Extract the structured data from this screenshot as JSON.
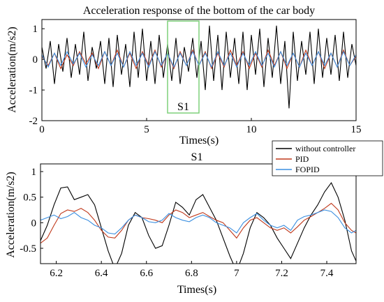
{
  "chart_data": [
    {
      "type": "line",
      "title": "Acceleration response of the bottom of the car body",
      "xlabel": "Times(s)",
      "ylabel": "Acceleration(m/s2)",
      "xlim": [
        0,
        15
      ],
      "ylim": [
        -2,
        1.3
      ],
      "xticks": [
        "0",
        "5",
        "10",
        "15"
      ],
      "yticks": [
        "1",
        "0",
        "-1",
        "-2"
      ],
      "grid": false,
      "series": [
        {
          "name": "without controller",
          "color": "#000000",
          "x": [
            0,
            0.2,
            0.4,
            0.6,
            0.8,
            1.0,
            1.2,
            1.4,
            1.6,
            1.8,
            2.0,
            2.2,
            2.4,
            2.6,
            2.8,
            3.0,
            3.2,
            3.4,
            3.6,
            3.8,
            4.0,
            4.2,
            4.4,
            4.6,
            4.8,
            5.0,
            5.2,
            5.4,
            5.6,
            5.8,
            6.0,
            6.2,
            6.4,
            6.6,
            6.8,
            7.0,
            7.2,
            7.4,
            7.6,
            7.8,
            8.0,
            8.2,
            8.4,
            8.6,
            8.8,
            9.0,
            9.2,
            9.4,
            9.6,
            9.8,
            10.0,
            10.2,
            10.4,
            10.6,
            10.8,
            11.0,
            11.2,
            11.4,
            11.6,
            11.8,
            12.0,
            12.2,
            12.4,
            12.6,
            12.8,
            13.0,
            13.2,
            13.4,
            13.6,
            13.8,
            14.0,
            14.2,
            14.4,
            14.6,
            14.8,
            15.0
          ],
          "values": [
            0.4,
            -0.3,
            0.6,
            -0.8,
            0.5,
            -0.4,
            0.7,
            -0.6,
            0.5,
            -0.5,
            0.9,
            -0.7,
            0.4,
            -0.3,
            0.6,
            -0.8,
            0.7,
            -0.9,
            0.8,
            -0.5,
            0.5,
            -0.9,
            0.9,
            -0.6,
            1.0,
            -0.7,
            0.6,
            -0.8,
            0.8,
            -0.6,
            0.5,
            -0.7,
            0.7,
            -0.8,
            0.4,
            -0.4,
            0.7,
            -0.6,
            0.6,
            -1.0,
            1.1,
            -0.7,
            0.8,
            -1.0,
            0.9,
            -0.6,
            0.7,
            -0.8,
            0.9,
            -1.0,
            0.8,
            -0.5,
            1.0,
            -0.9,
            0.7,
            -0.6,
            1.1,
            -0.8,
            0.6,
            -1.6,
            0.9,
            -0.7,
            0.6,
            -0.5,
            0.9,
            -0.8,
            1.0,
            -0.6,
            0.7,
            -0.5,
            0.8,
            -0.7,
            0.9,
            -0.6,
            0.5,
            -0.2
          ]
        },
        {
          "name": "PID",
          "color": "#c0391b",
          "x": [
            0,
            0.3,
            0.6,
            0.9,
            1.2,
            1.5,
            1.8,
            2.1,
            2.4,
            2.7,
            3.0,
            3.3,
            3.6,
            3.9,
            4.2,
            4.5,
            4.8,
            5.1,
            5.4,
            5.7,
            6.0,
            6.3,
            6.6,
            6.9,
            7.2,
            7.5,
            7.8,
            8.1,
            8.4,
            8.7,
            9.0,
            9.3,
            9.6,
            9.9,
            10.2,
            10.5,
            10.8,
            11.1,
            11.4,
            11.7,
            12.0,
            12.3,
            12.6,
            12.9,
            13.2,
            13.5,
            13.8,
            14.1,
            14.4,
            14.7,
            15.0
          ],
          "values": [
            0.1,
            -0.2,
            0.2,
            -0.3,
            0.15,
            -0.2,
            0.25,
            -0.15,
            0.2,
            -0.3,
            0.25,
            -0.2,
            0.3,
            -0.25,
            0.2,
            -0.3,
            0.25,
            -0.2,
            0.3,
            -0.25,
            0.2,
            -0.3,
            0.25,
            -0.2,
            0.3,
            -0.2,
            0.25,
            -0.3,
            0.2,
            -0.25,
            0.3,
            -0.2,
            0.25,
            -0.3,
            0.2,
            -0.25,
            0.3,
            -0.2,
            0.25,
            -0.3,
            0.2,
            -0.25,
            0.3,
            -0.2,
            0.25,
            -0.3,
            0.2,
            -0.25,
            0.3,
            -0.2,
            0.1
          ]
        },
        {
          "name": "FOPID",
          "color": "#3b8fe0",
          "x": [
            0,
            0.3,
            0.6,
            0.9,
            1.2,
            1.5,
            1.8,
            2.1,
            2.4,
            2.7,
            3.0,
            3.3,
            3.6,
            3.9,
            4.2,
            4.5,
            4.8,
            5.1,
            5.4,
            5.7,
            6.0,
            6.3,
            6.6,
            6.9,
            7.2,
            7.5,
            7.8,
            8.1,
            8.4,
            8.7,
            9.0,
            9.3,
            9.6,
            9.9,
            10.2,
            10.5,
            10.8,
            11.1,
            11.4,
            11.7,
            12.0,
            12.3,
            12.6,
            12.9,
            13.2,
            13.5,
            13.8,
            14.1,
            14.4,
            14.7,
            15.0
          ],
          "values": [
            0.15,
            -0.25,
            0.2,
            -0.2,
            0.25,
            -0.15,
            0.2,
            -0.25,
            0.15,
            -0.2,
            0.25,
            -0.2,
            0.2,
            -0.25,
            0.25,
            -0.2,
            0.2,
            -0.25,
            0.25,
            -0.2,
            0.2,
            -0.25,
            0.2,
            -0.2,
            0.25,
            -0.2,
            0.2,
            -0.25,
            0.25,
            -0.2,
            0.2,
            -0.25,
            0.2,
            -0.2,
            0.25,
            -0.2,
            0.2,
            -0.25,
            0.25,
            -0.2,
            0.2,
            -0.25,
            0.2,
            -0.2,
            0.25,
            -0.2,
            0.2,
            -0.25,
            0.25,
            -0.2,
            0.15
          ]
        }
      ],
      "annotation": {
        "label": "S1",
        "x_range": [
          6.0,
          7.5
        ],
        "y_range": [
          -1.75,
          1.25
        ],
        "color": "#7ed07a"
      }
    },
    {
      "type": "line",
      "title": "S1",
      "xlabel": "Times(s)",
      "ylabel": "Acceleration(m/s2)",
      "xlim": [
        6.13,
        7.53
      ],
      "ylim": [
        -0.8,
        1.15
      ],
      "xticks": [
        "6.2",
        "6.4",
        "6.6",
        "6.8",
        "7",
        "7.2",
        "7.4"
      ],
      "yticks": [
        "1",
        "0.5",
        "0",
        "-0.5"
      ],
      "grid": false,
      "legend_position": "top-right",
      "series": [
        {
          "name": "without controller",
          "color": "#000000",
          "x": [
            6.13,
            6.16,
            6.19,
            6.22,
            6.25,
            6.28,
            6.31,
            6.34,
            6.37,
            6.4,
            6.43,
            6.46,
            6.49,
            6.52,
            6.55,
            6.58,
            6.61,
            6.64,
            6.67,
            6.7,
            6.73,
            6.76,
            6.79,
            6.82,
            6.85,
            6.88,
            6.91,
            6.94,
            6.97,
            7.0,
            7.03,
            7.06,
            7.09,
            7.12,
            7.15,
            7.18,
            7.21,
            7.24,
            7.27,
            7.3,
            7.33,
            7.36,
            7.39,
            7.42,
            7.45,
            7.48,
            7.51,
            7.53
          ],
          "values": [
            -0.35,
            -0.05,
            0.35,
            0.68,
            0.7,
            0.45,
            0.5,
            0.55,
            0.35,
            -0.1,
            -0.55,
            -0.9,
            -0.6,
            -0.05,
            0.2,
            0.1,
            -0.25,
            -0.5,
            -0.45,
            -0.05,
            0.4,
            0.3,
            0.15,
            0.45,
            0.55,
            0.3,
            0.05,
            -0.3,
            -0.65,
            -0.95,
            -0.6,
            -0.1,
            0.2,
            0.1,
            -0.05,
            -0.3,
            -0.5,
            -0.7,
            -0.4,
            -0.1,
            0.15,
            0.35,
            0.6,
            0.78,
            0.5,
            0.05,
            -0.55,
            -0.75
          ]
        },
        {
          "name": "PID",
          "color": "#c0391b",
          "x": [
            6.13,
            6.16,
            6.19,
            6.22,
            6.25,
            6.28,
            6.31,
            6.34,
            6.37,
            6.4,
            6.43,
            6.46,
            6.49,
            6.52,
            6.55,
            6.58,
            6.61,
            6.64,
            6.67,
            6.7,
            6.73,
            6.76,
            6.79,
            6.82,
            6.85,
            6.88,
            6.91,
            6.94,
            6.97,
            7.0,
            7.03,
            7.06,
            7.09,
            7.12,
            7.15,
            7.18,
            7.21,
            7.24,
            7.27,
            7.3,
            7.33,
            7.36,
            7.39,
            7.42,
            7.45,
            7.48,
            7.51,
            7.53
          ],
          "values": [
            -0.4,
            -0.3,
            -0.05,
            0.18,
            0.25,
            0.22,
            0.28,
            0.2,
            0.05,
            -0.15,
            -0.28,
            -0.3,
            -0.15,
            0.05,
            0.15,
            0.1,
            0.08,
            0.05,
            0.0,
            0.15,
            0.25,
            0.2,
            0.1,
            0.15,
            0.2,
            0.12,
            0.05,
            0.0,
            -0.15,
            -0.3,
            -0.1,
            0.05,
            0.1,
            0.0,
            -0.1,
            -0.15,
            -0.1,
            -0.2,
            -0.08,
            0.05,
            0.12,
            0.2,
            0.28,
            0.38,
            0.25,
            0.0,
            -0.15,
            -0.2
          ]
        },
        {
          "name": "FOPID",
          "color": "#3b8fe0",
          "x": [
            6.13,
            6.16,
            6.19,
            6.22,
            6.25,
            6.28,
            6.31,
            6.34,
            6.37,
            6.4,
            6.43,
            6.46,
            6.49,
            6.52,
            6.55,
            6.58,
            6.61,
            6.64,
            6.67,
            6.7,
            6.73,
            6.76,
            6.79,
            6.82,
            6.85,
            6.88,
            6.91,
            6.94,
            6.97,
            7.0,
            7.03,
            7.06,
            7.09,
            7.12,
            7.15,
            7.18,
            7.21,
            7.24,
            7.27,
            7.3,
            7.33,
            7.36,
            7.39,
            7.42,
            7.45,
            7.48,
            7.51,
            7.53
          ],
          "values": [
            0.05,
            0.1,
            0.15,
            0.08,
            0.12,
            0.2,
            0.1,
            0.05,
            -0.05,
            -0.1,
            -0.2,
            -0.22,
            -0.1,
            0.05,
            0.15,
            0.1,
            0.02,
            0.0,
            0.05,
            0.18,
            0.1,
            0.05,
            0.02,
            0.1,
            0.15,
            0.1,
            0.0,
            -0.05,
            -0.1,
            -0.2,
            0.0,
            0.1,
            0.18,
            0.05,
            -0.05,
            -0.1,
            -0.05,
            -0.15,
            0.05,
            0.12,
            0.15,
            0.2,
            0.25,
            0.22,
            0.1,
            -0.1,
            -0.2,
            -0.15
          ]
        }
      ]
    }
  ]
}
